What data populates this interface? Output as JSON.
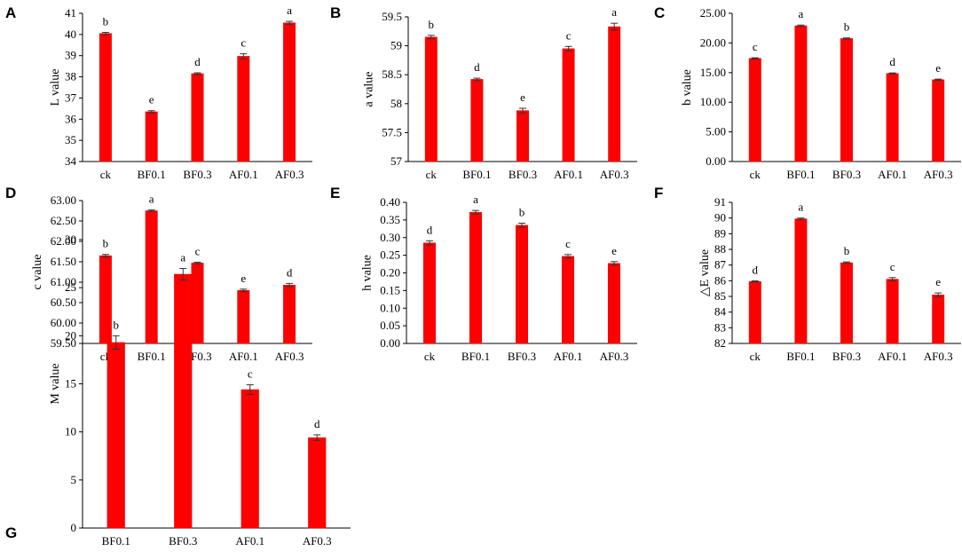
{
  "colors": {
    "bar": "#ff0000",
    "bar_edge": "#e00000",
    "error": "#333333",
    "axis": "#000000"
  },
  "chart_data": [
    {
      "panel": "A",
      "type": "bar",
      "ylabel": "L value",
      "categories": [
        "ck",
        "BF0.1",
        "BF0.3",
        "AF0.1",
        "AF0.3"
      ],
      "values": [
        40.05,
        36.35,
        38.15,
        38.97,
        40.55
      ],
      "errors": [
        0.05,
        0.05,
        0.04,
        0.12,
        0.07
      ],
      "significance": [
        "b",
        "e",
        "d",
        "c",
        "a"
      ],
      "ylim": [
        34,
        41
      ],
      "ticks": [
        34,
        35,
        36,
        37,
        38,
        39,
        40,
        41
      ],
      "tick_labels": [
        "34",
        "35",
        "36",
        "37",
        "38",
        "39",
        "40",
        "41"
      ]
    },
    {
      "panel": "B",
      "type": "bar",
      "ylabel": "a value",
      "categories": [
        "ck",
        "BF0.1",
        "BF0.3",
        "AF0.1",
        "AF0.3"
      ],
      "values": [
        59.15,
        58.42,
        57.88,
        58.95,
        59.33
      ],
      "errors": [
        0.03,
        0.02,
        0.04,
        0.04,
        0.06
      ],
      "significance": [
        "b",
        "d",
        "e",
        "c",
        "a"
      ],
      "ylim": [
        57,
        59.5
      ],
      "ticks": [
        57,
        57.5,
        58,
        58.5,
        59,
        59.5
      ],
      "tick_labels": [
        "57",
        "57.5",
        "58",
        "58.5",
        "59",
        "59.5"
      ]
    },
    {
      "panel": "C",
      "type": "bar",
      "ylabel": "b value",
      "categories": [
        "ck",
        "BF0.1",
        "BF0.3",
        "AF0.1",
        "AF0.3"
      ],
      "values": [
        17.4,
        22.9,
        20.75,
        14.85,
        13.8
      ],
      "errors": [
        0.1,
        0.12,
        0.1,
        0.1,
        0.1
      ],
      "significance": [
        "c",
        "a",
        "b",
        "d",
        "e"
      ],
      "ylim": [
        0,
        25
      ],
      "ticks": [
        0,
        5,
        10,
        15,
        20,
        25
      ],
      "tick_labels": [
        "0.00",
        "5.00",
        "10.00",
        "15.00",
        "20.00",
        "25.00"
      ]
    },
    {
      "panel": "D",
      "type": "bar",
      "ylabel": "c value",
      "categories": [
        "ck",
        "BF0.1",
        "BF0.3",
        "AF0.1",
        "AF0.3"
      ],
      "values": [
        61.65,
        62.75,
        61.47,
        60.8,
        60.93
      ],
      "errors": [
        0.03,
        0.02,
        0.02,
        0.03,
        0.04
      ],
      "significance": [
        "b",
        "a",
        "c",
        "e",
        "d"
      ],
      "ylim": [
        59.5,
        63
      ],
      "ticks": [
        59.5,
        60,
        60.5,
        61,
        61.5,
        62,
        62.5,
        63
      ],
      "tick_labels": [
        "59.50",
        "60.00",
        "60.50",
        "61.00",
        "61.50",
        "62.00",
        "62.50",
        "63.00"
      ]
    },
    {
      "panel": "E",
      "type": "bar",
      "ylabel": "h value",
      "categories": [
        "ck",
        "BF0.1",
        "BF0.3",
        "AF0.1",
        "AF0.3"
      ],
      "values": [
        0.285,
        0.372,
        0.335,
        0.247,
        0.227
      ],
      "errors": [
        0.006,
        0.005,
        0.006,
        0.005,
        0.005
      ],
      "significance": [
        "d",
        "a",
        "b",
        "c",
        "e"
      ],
      "ylim": [
        0,
        0.4
      ],
      "ticks": [
        0,
        0.05,
        0.1,
        0.15,
        0.2,
        0.25,
        0.3,
        0.35,
        0.4
      ],
      "tick_labels": [
        "0.00",
        "0.05",
        "0.10",
        "0.15",
        "0.20",
        "0.25",
        "0.30",
        "0.35",
        "0.40"
      ]
    },
    {
      "panel": "F",
      "type": "bar",
      "ylabel": "△E value",
      "categories": [
        "ck",
        "BF0.1",
        "BF0.3",
        "AF0.1",
        "AF0.3"
      ],
      "values": [
        85.95,
        89.95,
        87.15,
        86.1,
        85.1
      ],
      "errors": [
        0.04,
        0.05,
        0.05,
        0.1,
        0.12
      ],
      "significance": [
        "d",
        "a",
        "b",
        "c",
        "e"
      ],
      "ylim": [
        82,
        91
      ],
      "ticks": [
        82,
        83,
        84,
        85,
        86,
        87,
        88,
        89,
        90,
        91
      ],
      "tick_labels": [
        "82",
        "83",
        "84",
        "85",
        "86",
        "87",
        "88",
        "89",
        "90",
        "91"
      ]
    },
    {
      "panel": "G",
      "type": "bar",
      "ylabel": "M value",
      "categories": [
        "BF0.1",
        "BF0.3",
        "AF0.1",
        "AF0.3"
      ],
      "values": [
        19.3,
        26.4,
        14.4,
        9.4
      ],
      "errors": [
        0.7,
        0.6,
        0.5,
        0.3
      ],
      "significance": [
        "b",
        "a",
        "c",
        "d"
      ],
      "ylim": [
        0,
        30
      ],
      "ticks": [
        0,
        5,
        10,
        15,
        20,
        25,
        30
      ],
      "tick_labels": [
        "0",
        "5",
        "10",
        "15",
        "20",
        "25",
        "30"
      ]
    }
  ]
}
